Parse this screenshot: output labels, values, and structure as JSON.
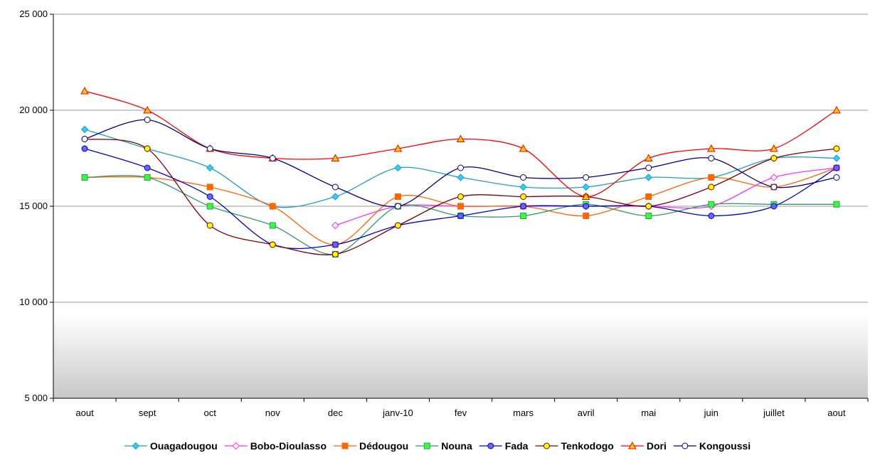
{
  "chart_data": {
    "type": "line",
    "title": "",
    "xlabel": "",
    "ylabel": "",
    "ylim": [
      5000,
      25000
    ],
    "y_ticks": [
      5000,
      10000,
      15000,
      20000,
      25000
    ],
    "y_tick_labels": [
      "5 000",
      "10 000",
      "15 000",
      "20 000",
      "25 000"
    ],
    "grid": "horizontal",
    "legend_position": "bottom",
    "categories": [
      "aout",
      "sept",
      "oct",
      "nov",
      "dec",
      "janv-10",
      "fev",
      "mars",
      "avril",
      "mai",
      "juin",
      "juillet",
      "aout"
    ],
    "series": [
      {
        "name": "Ouagadougou",
        "color": "#1f9fbf",
        "fill": "#33ccff",
        "marker": "diamond",
        "values": [
          19000,
          18000,
          17000,
          15000,
          15500,
          17000,
          16500,
          16000,
          16000,
          16500,
          16500,
          17500,
          17500
        ]
      },
      {
        "name": "Bobo-Dioulasso",
        "color": "#ff33ff",
        "fill": "#ffffff",
        "marker": "diamond",
        "values": [
          null,
          null,
          null,
          null,
          14000,
          15000,
          15000,
          15000,
          15000,
          15000,
          15000,
          16500,
          17000
        ]
      },
      {
        "name": "Dédougou",
        "color": "#ff6600",
        "fill": "#ff6600",
        "marker": "square",
        "values": [
          16500,
          16500,
          16000,
          15000,
          13000,
          15500,
          15000,
          15000,
          14500,
          15500,
          16500,
          16000,
          17000
        ]
      },
      {
        "name": "Nouna",
        "color": "#339966",
        "fill": "#33ff33",
        "marker": "square",
        "values": [
          16500,
          16500,
          15000,
          14000,
          12500,
          15000,
          14500,
          14500,
          15100,
          14500,
          15100,
          15100,
          15100
        ]
      },
      {
        "name": "Fada",
        "color": "#0000cc",
        "fill": "#6666ff",
        "marker": "circle",
        "values": [
          18000,
          17000,
          15500,
          13000,
          13000,
          14000,
          14500,
          15000,
          15000,
          15000,
          14500,
          15000,
          17000
        ]
      },
      {
        "name": "Tenkodogo",
        "color": "#800000",
        "fill": "#ffff00",
        "marker": "circle",
        "values": [
          18500,
          18000,
          14000,
          13000,
          12500,
          14000,
          15500,
          15500,
          15500,
          15000,
          16000,
          17500,
          18000
        ]
      },
      {
        "name": "Dori",
        "color": "#ff0000",
        "fill": "#ffcc00",
        "marker": "triangle",
        "values": [
          21000,
          20000,
          18000,
          17500,
          17500,
          18000,
          18500,
          18000,
          15500,
          17500,
          18000,
          18000,
          20000
        ]
      },
      {
        "name": "Kongoussi",
        "color": "#000080",
        "fill": "#ffffff",
        "marker": "circle",
        "values": [
          18500,
          19500,
          18000,
          17500,
          16000,
          15000,
          17000,
          16500,
          16500,
          17000,
          17500,
          16000,
          16500
        ]
      }
    ]
  }
}
